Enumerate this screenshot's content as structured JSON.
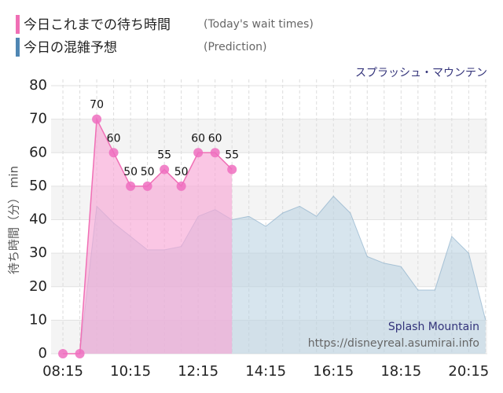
{
  "chart_data": {
    "type": "area",
    "annotation": "スプラッシュ・マウンテン",
    "watermark": [
      "Splash Mountain",
      "https://disneyreal.asumirai.info"
    ],
    "y_label": "待ち時間（分） min",
    "xlim": [
      7.9,
      20.8
    ],
    "ylim": [
      0,
      80
    ],
    "yticks": [
      0,
      10,
      20,
      30,
      40,
      50,
      60,
      70,
      80
    ],
    "xticks": [
      {
        "value": 8.25,
        "label": "08:15"
      },
      {
        "value": 10.25,
        "label": "10:15"
      },
      {
        "value": 12.25,
        "label": "12:15"
      },
      {
        "value": 14.25,
        "label": "14:15"
      },
      {
        "value": 16.25,
        "label": "16:15"
      },
      {
        "value": 18.25,
        "label": "18:15"
      },
      {
        "value": 20.25,
        "label": "20:15"
      }
    ],
    "grid": true,
    "series": [
      {
        "name": "今日の混雑予想",
        "subtitle": "(Prediction)",
        "color": "#7fa6c4",
        "x": [
          8.25,
          8.75,
          9.25,
          9.75,
          10.25,
          10.75,
          11.25,
          11.75,
          12.25,
          12.75,
          13.25,
          13.75,
          14.25,
          14.75,
          15.25,
          15.75,
          16.25,
          16.75,
          17.25,
          17.75,
          18.25,
          18.75,
          19.25,
          19.75,
          20.25,
          20.75
        ],
        "values": [
          0,
          0,
          44,
          39,
          35,
          31,
          31,
          32,
          41,
          43,
          40,
          41,
          38,
          42,
          44,
          41,
          47,
          42,
          29,
          27,
          26,
          19,
          19,
          35,
          30,
          10
        ]
      },
      {
        "name": "今日これまでの待ち時間",
        "subtitle": "(Today's wait times)",
        "color": "#f06fb5",
        "x": [
          8.25,
          8.75,
          9.25,
          9.75,
          10.25,
          10.75,
          11.25,
          11.75,
          12.25,
          12.75,
          13.25
        ],
        "values": [
          0,
          0,
          70,
          60,
          50,
          50,
          55,
          50,
          60,
          60,
          55
        ]
      }
    ]
  }
}
